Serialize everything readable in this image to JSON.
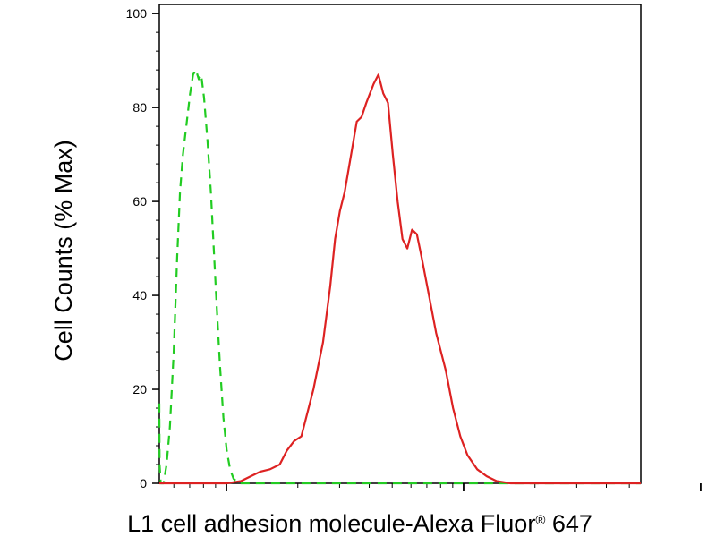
{
  "chart_data": {
    "type": "line",
    "title": "",
    "xlabel": "L1 cell adhesion molecule-Alexa Fluor",
    "xlabel_superscript": "®",
    "xlabel_suffix": " 647",
    "ylabel": "Cell Counts (% Max)",
    "x_scale": "log",
    "ylim": [
      0,
      100
    ],
    "yticks": [
      0,
      20,
      40,
      60,
      80,
      100
    ],
    "ytick_labels": [
      "0",
      "20",
      "40",
      "60",
      "80",
      "100"
    ],
    "x_major_tick_count": 3,
    "grid": false,
    "legend": "none",
    "series": [
      {
        "color": "#22cc22",
        "style": "dashed",
        "points": [
          [
            0,
            17
          ],
          [
            0.05,
            4
          ],
          [
            0.3,
            0
          ],
          [
            0.9,
            0
          ],
          [
            1.5,
            4
          ],
          [
            2.2,
            12
          ],
          [
            3.0,
            28
          ],
          [
            3.7,
            48
          ],
          [
            4.3,
            62
          ],
          [
            4.9,
            70
          ],
          [
            5.6,
            76
          ],
          [
            6.4,
            83
          ],
          [
            7.0,
            87
          ],
          [
            7.6,
            88
          ],
          [
            8.2,
            86
          ],
          [
            8.7,
            87
          ],
          [
            9.3,
            82
          ],
          [
            10.0,
            73
          ],
          [
            10.7,
            62
          ],
          [
            11.3,
            50
          ],
          [
            12.0,
            36
          ],
          [
            12.6,
            25
          ],
          [
            13.3,
            14
          ],
          [
            14.0,
            7
          ],
          [
            14.7,
            3
          ],
          [
            15.4,
            1
          ],
          [
            16.5,
            0
          ],
          [
            100,
            0
          ]
        ]
      },
      {
        "color": "#dd2222",
        "style": "solid",
        "points": [
          [
            0,
            0
          ],
          [
            14,
            0
          ],
          [
            17,
            0.5
          ],
          [
            19,
            1.5
          ],
          [
            21,
            2.5
          ],
          [
            23,
            3
          ],
          [
            25,
            4
          ],
          [
            26.5,
            7
          ],
          [
            28,
            9
          ],
          [
            29.5,
            10
          ],
          [
            30.5,
            14
          ],
          [
            32,
            20
          ],
          [
            34,
            30
          ],
          [
            35.5,
            42
          ],
          [
            36.5,
            52
          ],
          [
            37.5,
            58
          ],
          [
            38.5,
            62
          ],
          [
            40,
            71
          ],
          [
            41,
            77
          ],
          [
            42,
            78
          ],
          [
            43,
            81
          ],
          [
            44.5,
            85
          ],
          [
            45.5,
            87
          ],
          [
            46.5,
            83
          ],
          [
            47.5,
            81
          ],
          [
            48.5,
            70
          ],
          [
            49.5,
            60
          ],
          [
            50.5,
            52
          ],
          [
            51.5,
            50
          ],
          [
            52.5,
            54
          ],
          [
            53.5,
            53
          ],
          [
            54.5,
            48
          ],
          [
            56,
            40
          ],
          [
            57.5,
            32
          ],
          [
            59.5,
            24
          ],
          [
            61,
            16
          ],
          [
            62.5,
            10
          ],
          [
            64,
            6
          ],
          [
            66,
            3
          ],
          [
            68,
            1.5
          ],
          [
            70,
            0.5
          ],
          [
            73,
            0
          ],
          [
            100,
            0
          ]
        ]
      }
    ]
  }
}
